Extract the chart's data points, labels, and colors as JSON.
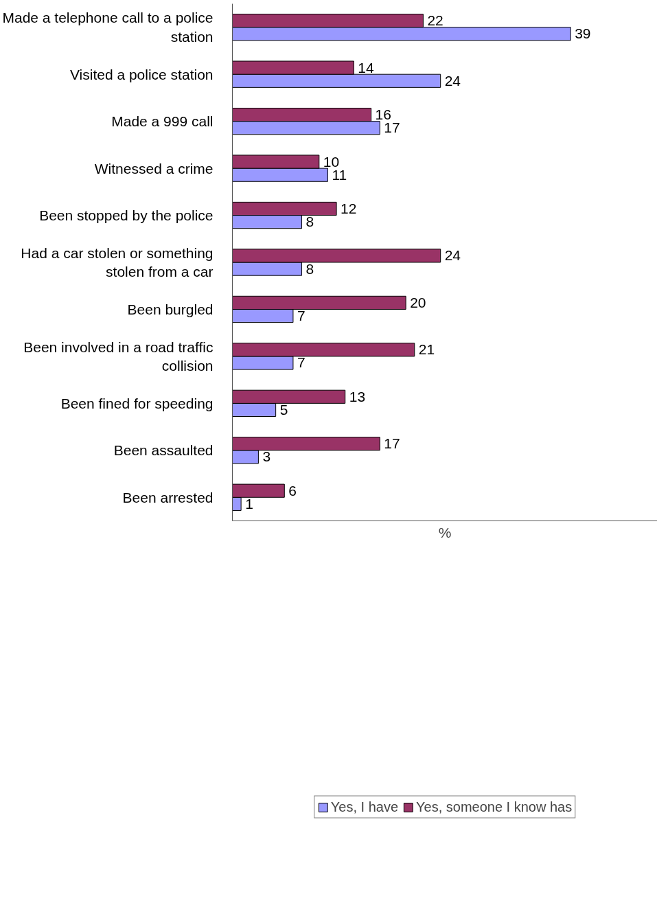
{
  "chart_data": {
    "type": "bar",
    "orientation": "horizontal",
    "xlabel": "%",
    "categories": [
      "Made a telephone call to a police station",
      "Visited a police station",
      "Made a 999 call",
      "Witnessed a crime",
      "Been stopped by the police",
      "Had a car stolen or something stolen from a car",
      "Been burgled",
      "Been involved in a road traffic collision",
      "Been fined for speeding",
      "Been assaulted",
      "Been arrested"
    ],
    "series": [
      {
        "name": "Yes, I have",
        "color": "#9999ff",
        "values": [
          39,
          24,
          17,
          11,
          8,
          8,
          7,
          7,
          5,
          3,
          1
        ]
      },
      {
        "name": "Yes, someone I know has",
        "color": "#993366",
        "values": [
          22,
          14,
          16,
          10,
          12,
          24,
          20,
          21,
          13,
          17,
          6
        ]
      }
    ],
    "xlim": [
      0,
      49
    ],
    "data_labels": true,
    "grid": false,
    "legend": "bottom"
  }
}
